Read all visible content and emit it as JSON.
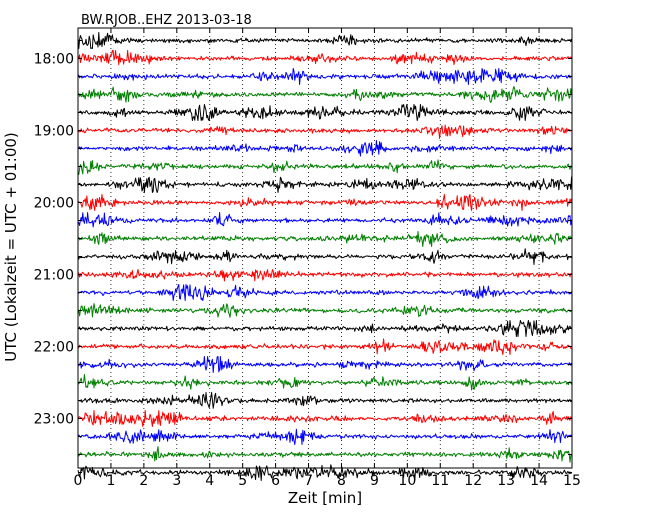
{
  "chart_data": {
    "type": "line",
    "title": "BW.RJOB..EHZ 2013-03-18",
    "xlabel": "Zeit  [min]",
    "ylabel": "UTC (Lokalzeit = UTC + 01:00)",
    "xlim": [
      0,
      15
    ],
    "x_ticks": [
      "0",
      "1",
      "2",
      "3",
      "4",
      "5",
      "6",
      "7",
      "8",
      "9",
      "10",
      "11",
      "12",
      "13",
      "14",
      "15"
    ],
    "y_tick_labels": [
      "18:00",
      "19:00",
      "20:00",
      "21:00",
      "22:00",
      "23:00"
    ],
    "row_interval_min": 15,
    "start_time": "17:45",
    "end_time": "24:00",
    "rows": [
      "17:45",
      "18:00",
      "18:15",
      "18:30",
      "18:45",
      "19:00",
      "19:15",
      "19:30",
      "19:45",
      "20:00",
      "20:15",
      "20:30",
      "20:45",
      "21:00",
      "21:15",
      "21:30",
      "21:45",
      "22:00",
      "22:15",
      "22:30",
      "22:45",
      "23:00",
      "23:15",
      "23:30",
      "23:45"
    ],
    "row_colors": [
      "#000000",
      "#ff0000",
      "#0000ff",
      "#008000"
    ],
    "grid": "vertical dotted lines at each minute",
    "legend": "none"
  }
}
